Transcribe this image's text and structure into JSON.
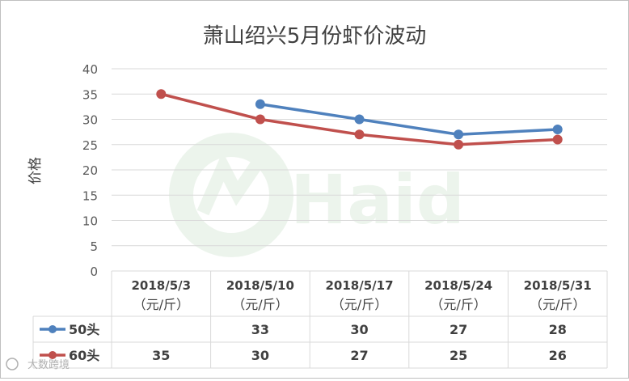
{
  "chart_data": {
    "type": "line",
    "title": "萧山绍兴5月份虾价波动",
    "ylabel": "价格",
    "xlabel": "",
    "ylim": [
      0,
      40
    ],
    "yticks": [
      0,
      5,
      10,
      15,
      20,
      25,
      30,
      35,
      40
    ],
    "grid": true,
    "legend": "data-table",
    "categories": [
      "2018/5/3",
      "2018/5/10",
      "2018/5/17",
      "2018/5/24",
      "2018/5/31"
    ],
    "category_unit": "（元/斤）",
    "series": [
      {
        "name": "50头",
        "color": "#4f81bd",
        "values": [
          null,
          33,
          30,
          27,
          28
        ]
      },
      {
        "name": "60头",
        "color": "#c0504d",
        "values": [
          35,
          30,
          27,
          25,
          26
        ]
      }
    ]
  },
  "watermark": {
    "text": "Haid"
  },
  "corner_mark": {
    "text": "大数跨境"
  }
}
